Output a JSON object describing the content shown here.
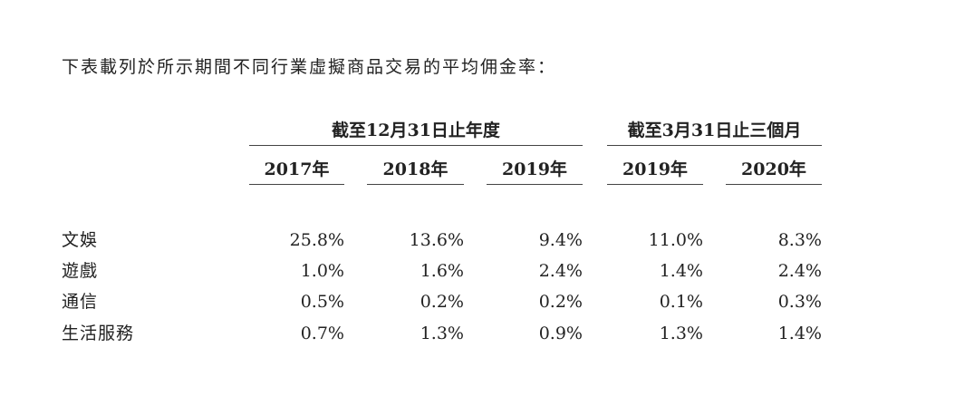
{
  "intro": "下表載列於所示期間不同行業虛擬商品交易的平均佣金率：",
  "table": {
    "group_headers": [
      "截至12月31日止年度",
      "截至3月31日止三個月"
    ],
    "columns": [
      "2017年",
      "2018年",
      "2019年",
      "2019年",
      "2020年"
    ],
    "rows": [
      {
        "label": "文娛",
        "values": [
          "25.8%",
          "13.6%",
          "9.4%",
          "11.0%",
          "8.3%"
        ]
      },
      {
        "label": "遊戲",
        "values": [
          "1.0%",
          "1.6%",
          "2.4%",
          "1.4%",
          "2.4%"
        ]
      },
      {
        "label": "通信",
        "values": [
          "0.5%",
          "0.2%",
          "0.2%",
          "0.1%",
          "0.3%"
        ]
      },
      {
        "label": "生活服務",
        "values": [
          "0.7%",
          "1.3%",
          "0.9%",
          "1.3%",
          "1.4%"
        ]
      }
    ]
  }
}
